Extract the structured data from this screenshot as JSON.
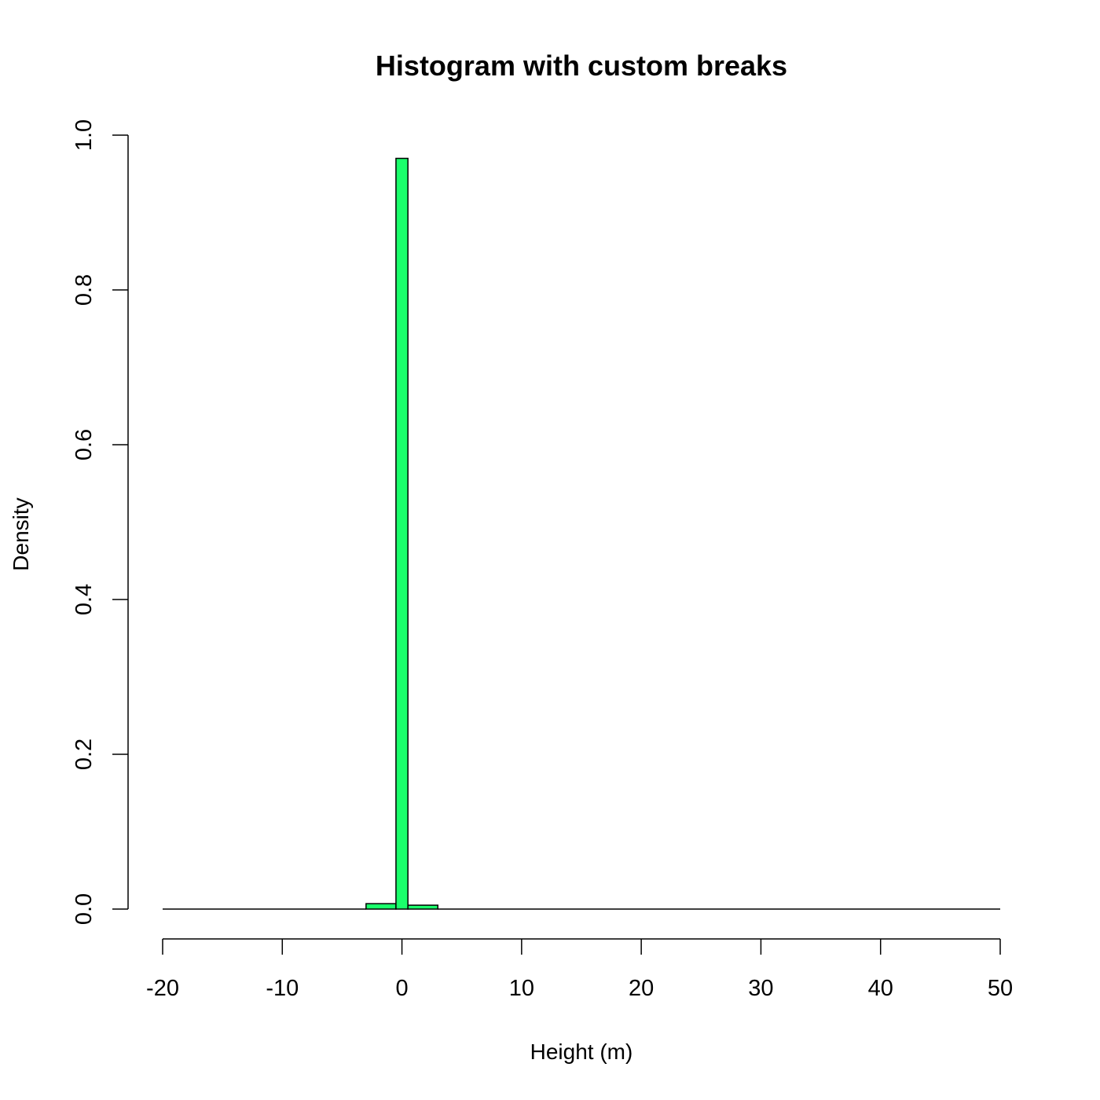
{
  "chart_data": {
    "type": "bar",
    "title": "Histogram with custom breaks",
    "xlabel": "Height (m)",
    "ylabel": "Density",
    "xlim": [
      -20,
      50
    ],
    "ylim": [
      0,
      1.0
    ],
    "x_ticks": [
      "-20",
      "-10",
      "0",
      "10",
      "20",
      "30",
      "40",
      "50"
    ],
    "y_ticks": [
      "0.0",
      "0.2",
      "0.4",
      "0.6",
      "0.8",
      "1.0"
    ],
    "bins": [
      {
        "from": -20,
        "to": -3,
        "density": 0.0
      },
      {
        "from": -3,
        "to": -0.5,
        "density": 0.007
      },
      {
        "from": -0.5,
        "to": 0.5,
        "density": 0.97
      },
      {
        "from": 0.5,
        "to": 3,
        "density": 0.005
      },
      {
        "from": 3,
        "to": 50,
        "density": 0.0
      }
    ],
    "grid": false,
    "colors": {
      "bar_fill": "#1aff6b",
      "bar_stroke": "#000000"
    }
  }
}
